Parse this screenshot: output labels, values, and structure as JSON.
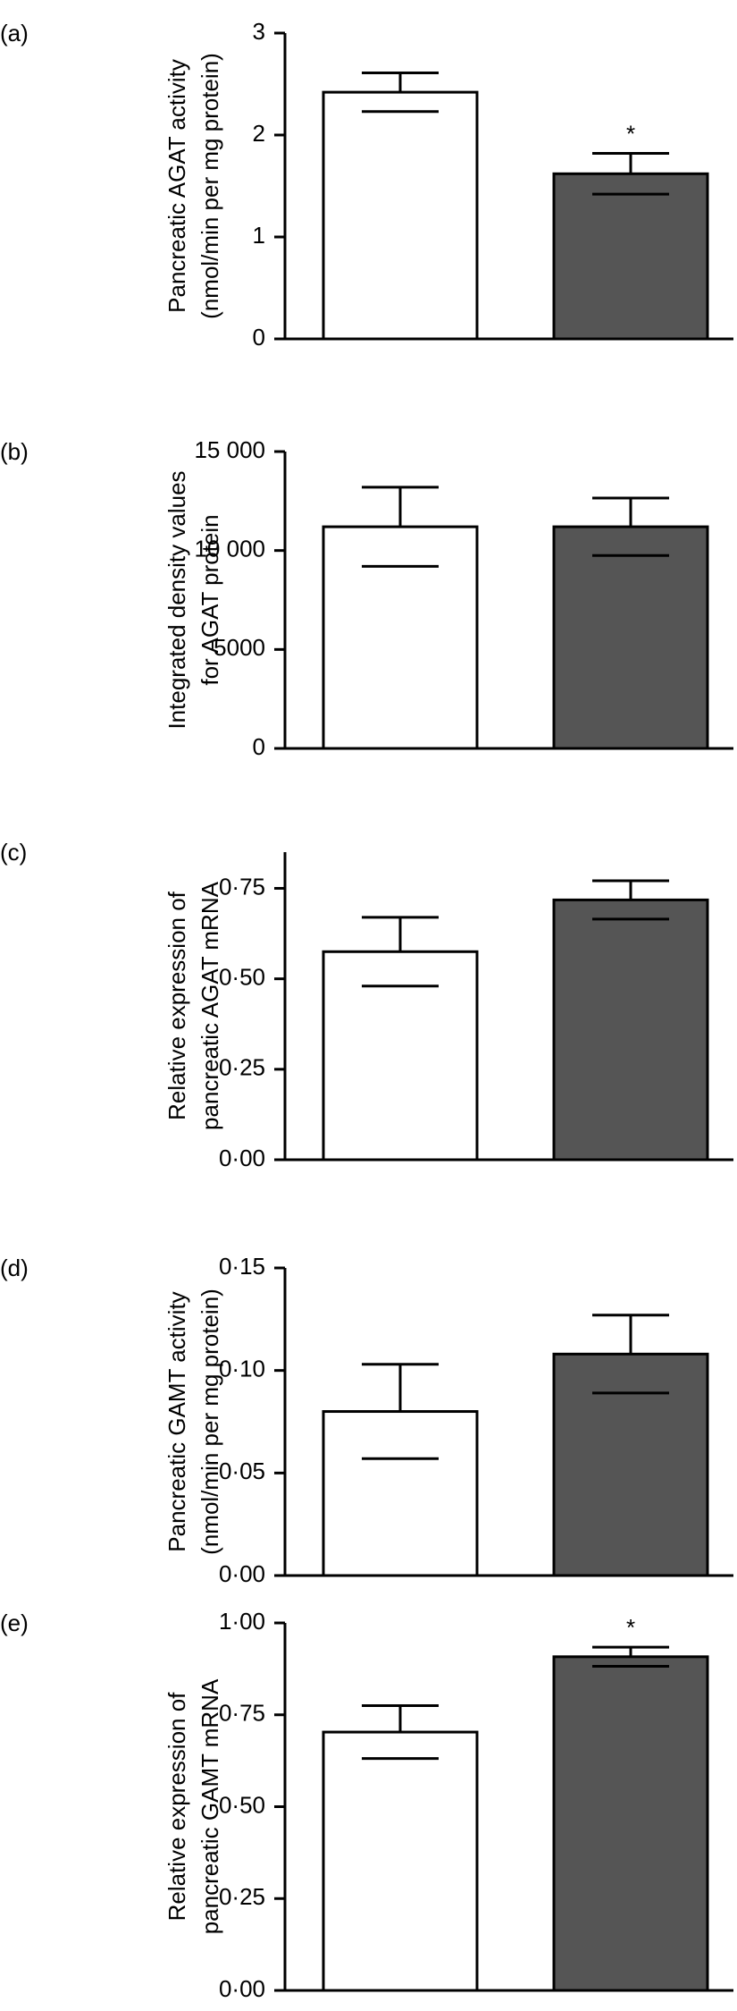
{
  "chart_data": [
    {
      "type": "bar",
      "panel": "(a)",
      "ylabel": [
        "Pancreatic AGAT activity",
        "(nmol/min per mg protein)"
      ],
      "categories": [
        null,
        null
      ],
      "values": [
        2.42,
        1.62
      ],
      "errors": [
        0.19,
        0.2
      ],
      "significance": [
        null,
        "*"
      ],
      "colors": [
        "#ffffff",
        "#555555"
      ],
      "ylim": [
        0,
        3
      ],
      "yticks": [
        0,
        1,
        2,
        3
      ]
    },
    {
      "type": "bar",
      "panel": "(b)",
      "ylabel": [
        "Integrated density values",
        "for AGAT protein"
      ],
      "categories": [
        null,
        null
      ],
      "values": [
        11200,
        11200
      ],
      "errors": [
        2000,
        1450
      ],
      "significance": [
        null,
        null
      ],
      "colors": [
        "#ffffff",
        "#555555"
      ],
      "ylim": [
        0,
        15000
      ],
      "yticks": [
        0,
        5000,
        {
          "value": 10000,
          "label": "10 000"
        },
        {
          "value": 15000,
          "label": "15 000"
        }
      ]
    },
    {
      "type": "bar",
      "panel": "(c)",
      "ylabel": [
        "Relative expression of",
        "pancreatic AGAT mRNA"
      ],
      "categories": [
        null,
        null
      ],
      "values": [
        0.575,
        0.718
      ],
      "errors": [
        0.095,
        0.053
      ],
      "significance": [
        null,
        null
      ],
      "colors": [
        "#ffffff",
        "#555555"
      ],
      "ylim": [
        0,
        0.85
      ],
      "yticks": [
        {
          "value": 0,
          "label": "0·00"
        },
        {
          "value": 0.25,
          "label": "0·25"
        },
        {
          "value": 0.5,
          "label": "0·50"
        },
        {
          "value": 0.75,
          "label": "0·75"
        }
      ]
    },
    {
      "type": "bar",
      "panel": "(d)",
      "ylabel": [
        "Pancreatic GAMT activity",
        "(nmol/min per mg protein)"
      ],
      "categories": [
        null,
        null
      ],
      "values": [
        0.08,
        0.108
      ],
      "errors": [
        0.023,
        0.019
      ],
      "significance": [
        null,
        null
      ],
      "colors": [
        "#ffffff",
        "#555555"
      ],
      "ylim": [
        0,
        0.15
      ],
      "yticks": [
        {
          "value": 0,
          "label": "0·00"
        },
        {
          "value": 0.05,
          "label": "0·05"
        },
        {
          "value": 0.1,
          "label": "0·10"
        },
        {
          "value": 0.15,
          "label": "0·15"
        }
      ]
    },
    {
      "type": "bar",
      "panel": "(e)",
      "ylabel": [
        "Relative expression of",
        "pancreatic GAMT mRNA"
      ],
      "categories": [
        null,
        null
      ],
      "values": [
        0.703,
        0.908
      ],
      "errors": [
        0.072,
        0.026
      ],
      "significance": [
        null,
        "*"
      ],
      "colors": [
        "#ffffff",
        "#555555"
      ],
      "ylim": [
        0,
        1
      ],
      "yticks": [
        {
          "value": 0,
          "label": "0·00"
        },
        {
          "value": 0.25,
          "label": "0·25"
        },
        {
          "value": 0.5,
          "label": "0·50"
        },
        {
          "value": 0.75,
          "label": "0·75"
        },
        {
          "value": 1,
          "label": "1·00"
        }
      ]
    }
  ]
}
